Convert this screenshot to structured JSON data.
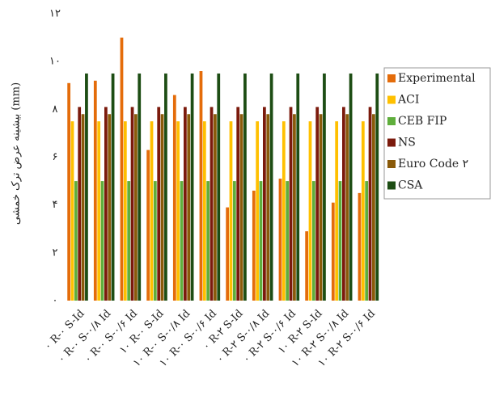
{
  "chart_data": {
    "type": "bar",
    "y_label": "بیشینه عرض ترک خمشی (mm)",
    "categories": [
      "۰ R-۰ S-Id",
      "۰ R-۰ S-۰/۸ Id",
      "۰ R-۰ S-۰/۶ Id",
      "۱۰ R-۰ S-Id",
      "۱۰ R-۰ S-۰/۸ Id",
      "۱۰ R-۰ S-۰/۶ Id",
      "۰ R-۲ S-Id",
      "۰ R-۲ S-۰/۸ Id",
      "۰ R-۲ S-۰/۶ Id",
      "۱۰ R-۲ S-Id",
      "۱۰ R-۲ S-۰/۸ Id",
      "۱۰ R-۲ S-۰/۶ Id"
    ],
    "series": [
      {
        "name": "Experimental",
        "color": "#e46c0a",
        "values": [
          9.1,
          9.2,
          11.0,
          6.3,
          8.6,
          9.6,
          3.9,
          4.6,
          5.1,
          2.9,
          4.1,
          4.5
        ]
      },
      {
        "name": "ACI",
        "color": "#ffc000",
        "values": [
          7.5,
          7.5,
          7.5,
          7.5,
          7.5,
          7.5,
          7.5,
          7.5,
          7.5,
          7.5,
          7.5,
          7.5
        ]
      },
      {
        "name": "CEB FIP",
        "color": "#5fae3c",
        "values": [
          5.0,
          5.0,
          5.0,
          5.0,
          5.0,
          5.0,
          5.0,
          5.0,
          5.0,
          5.0,
          5.0,
          5.0
        ]
      },
      {
        "name": "NS",
        "color": "#7b1a0c",
        "values": [
          8.1,
          8.1,
          8.1,
          8.1,
          8.1,
          8.1,
          8.1,
          8.1,
          8.1,
          8.1,
          8.1,
          8.1
        ]
      },
      {
        "name": "Euro Code ۲",
        "color": "#8a5a0a",
        "values": [
          7.8,
          7.8,
          7.8,
          7.8,
          7.8,
          7.8,
          7.8,
          7.8,
          7.8,
          7.8,
          7.8,
          7.8
        ]
      },
      {
        "name": "CSA",
        "color": "#1d4d14",
        "values": [
          9.5,
          9.5,
          9.5,
          9.5,
          9.5,
          9.5,
          9.5,
          9.5,
          9.5,
          9.5,
          9.5,
          9.5
        ]
      }
    ],
    "ylim": [
      0,
      12
    ],
    "yticks": [
      {
        "value": 0,
        "label": "۰"
      },
      {
        "value": 2,
        "label": "۲"
      },
      {
        "value": 4,
        "label": "۴"
      },
      {
        "value": 6,
        "label": "۶"
      },
      {
        "value": 8,
        "label": "۸"
      },
      {
        "value": 10,
        "label": "۱۰"
      },
      {
        "value": 12,
        "label": "۱۲"
      }
    ],
    "grid": false,
    "legend": "right"
  }
}
